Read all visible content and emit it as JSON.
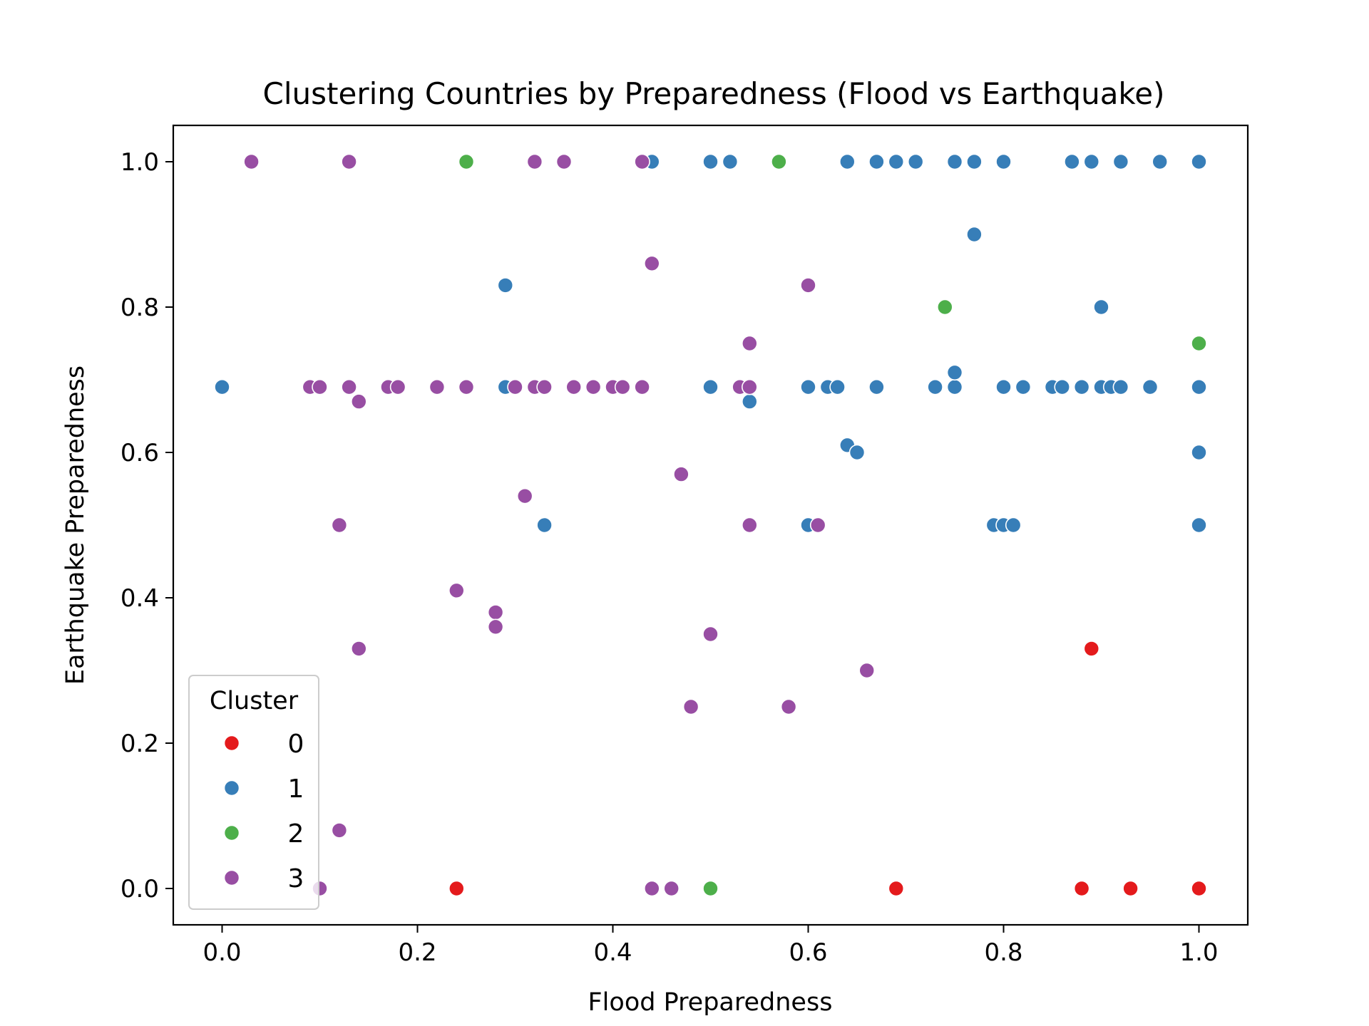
{
  "chart_data": {
    "type": "scatter",
    "title": "Clustering Countries by Preparedness (Flood vs Earthquake)",
    "xlabel": "Flood Preparedness",
    "ylabel": "Earthquake Preparedness",
    "xlim": [
      -0.05,
      1.05
    ],
    "ylim": [
      -0.05,
      1.05
    ],
    "xticks": [
      0.0,
      0.2,
      0.4,
      0.6,
      0.8,
      1.0
    ],
    "yticks": [
      0.0,
      0.2,
      0.4,
      0.6,
      0.8,
      1.0
    ],
    "xtick_labels": [
      "0.0",
      "0.2",
      "0.4",
      "0.6",
      "0.8",
      "1.0"
    ],
    "ytick_labels": [
      "0.0",
      "0.2",
      "0.4",
      "0.6",
      "0.8",
      "1.0"
    ],
    "grid": false,
    "legend": {
      "title": "Cluster",
      "placement": "lower-left",
      "entries": [
        "0",
        "1",
        "2",
        "3"
      ]
    },
    "series": [
      {
        "name": "0",
        "color": "#e41a1c",
        "points": [
          [
            0.24,
            0.0
          ],
          [
            0.69,
            0.0
          ],
          [
            0.88,
            0.0
          ],
          [
            0.93,
            0.0
          ],
          [
            1.0,
            0.0
          ],
          [
            0.89,
            0.33
          ]
        ]
      },
      {
        "name": "1",
        "color": "#377eb8",
        "points": [
          [
            0.44,
            1.0
          ],
          [
            0.5,
            1.0
          ],
          [
            0.52,
            1.0
          ],
          [
            0.64,
            1.0
          ],
          [
            0.67,
            1.0
          ],
          [
            0.69,
            1.0
          ],
          [
            0.71,
            1.0
          ],
          [
            0.75,
            1.0
          ],
          [
            0.77,
            1.0
          ],
          [
            0.8,
            1.0
          ],
          [
            0.87,
            1.0
          ],
          [
            0.89,
            1.0
          ],
          [
            0.92,
            1.0
          ],
          [
            0.96,
            1.0
          ],
          [
            1.0,
            1.0
          ],
          [
            0.77,
            0.9
          ],
          [
            0.29,
            0.83
          ],
          [
            0.9,
            0.8
          ],
          [
            0.0,
            0.69
          ],
          [
            0.29,
            0.69
          ],
          [
            0.5,
            0.69
          ],
          [
            0.6,
            0.69
          ],
          [
            0.62,
            0.69
          ],
          [
            0.63,
            0.69
          ],
          [
            0.67,
            0.69
          ],
          [
            0.73,
            0.69
          ],
          [
            0.75,
            0.69
          ],
          [
            0.8,
            0.69
          ],
          [
            0.82,
            0.69
          ],
          [
            0.85,
            0.69
          ],
          [
            0.86,
            0.69
          ],
          [
            0.88,
            0.69
          ],
          [
            0.9,
            0.69
          ],
          [
            0.91,
            0.69
          ],
          [
            0.92,
            0.69
          ],
          [
            0.95,
            0.69
          ],
          [
            1.0,
            0.69
          ],
          [
            0.75,
            0.71
          ],
          [
            0.54,
            0.67
          ],
          [
            0.64,
            0.61
          ],
          [
            0.65,
            0.6
          ],
          [
            1.0,
            0.6
          ],
          [
            0.33,
            0.5
          ],
          [
            0.6,
            0.5
          ],
          [
            0.79,
            0.5
          ],
          [
            0.8,
            0.5
          ],
          [
            0.81,
            0.5
          ],
          [
            1.0,
            0.5
          ]
        ]
      },
      {
        "name": "2",
        "color": "#4daf4a",
        "points": [
          [
            0.25,
            1.0
          ],
          [
            0.57,
            1.0
          ],
          [
            0.74,
            0.8
          ],
          [
            1.0,
            0.75
          ],
          [
            0.5,
            0.0
          ]
        ]
      },
      {
        "name": "3",
        "color": "#984ea3",
        "points": [
          [
            0.03,
            1.0
          ],
          [
            0.13,
            1.0
          ],
          [
            0.32,
            1.0
          ],
          [
            0.35,
            1.0
          ],
          [
            0.43,
            1.0
          ],
          [
            0.44,
            0.86
          ],
          [
            0.6,
            0.83
          ],
          [
            0.54,
            0.75
          ],
          [
            0.09,
            0.69
          ],
          [
            0.1,
            0.69
          ],
          [
            0.13,
            0.69
          ],
          [
            0.17,
            0.69
          ],
          [
            0.18,
            0.69
          ],
          [
            0.22,
            0.69
          ],
          [
            0.25,
            0.69
          ],
          [
            0.3,
            0.69
          ],
          [
            0.32,
            0.69
          ],
          [
            0.33,
            0.69
          ],
          [
            0.36,
            0.69
          ],
          [
            0.38,
            0.69
          ],
          [
            0.4,
            0.69
          ],
          [
            0.41,
            0.69
          ],
          [
            0.43,
            0.69
          ],
          [
            0.53,
            0.69
          ],
          [
            0.54,
            0.69
          ],
          [
            0.14,
            0.67
          ],
          [
            0.47,
            0.57
          ],
          [
            0.31,
            0.54
          ],
          [
            0.12,
            0.5
          ],
          [
            0.54,
            0.5
          ],
          [
            0.61,
            0.5
          ],
          [
            0.24,
            0.41
          ],
          [
            0.28,
            0.38
          ],
          [
            0.28,
            0.36
          ],
          [
            0.5,
            0.35
          ],
          [
            0.14,
            0.33
          ],
          [
            0.66,
            0.3
          ],
          [
            0.48,
            0.25
          ],
          [
            0.58,
            0.25
          ],
          [
            0.12,
            0.08
          ],
          [
            0.1,
            0.0
          ],
          [
            0.44,
            0.0
          ],
          [
            0.46,
            0.0
          ]
        ]
      }
    ]
  }
}
